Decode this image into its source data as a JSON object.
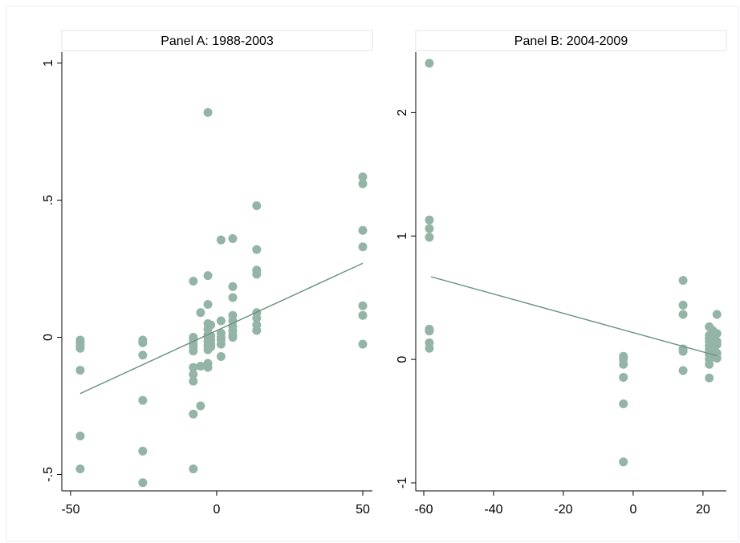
{
  "chart_data": [
    {
      "type": "scatter",
      "title": "Panel A: 1988-2003",
      "xlim": [
        -53,
        53.3
      ],
      "ylim": [
        -0.56,
        1.04
      ],
      "xticks": [
        -50,
        0,
        50
      ],
      "yticks": [
        {
          "value": -0.5,
          "label": "-.5"
        },
        0,
        {
          "value": 0.5,
          "label": ".5"
        },
        1
      ],
      "points": {
        "color": "#93b4a7",
        "x": [
          -46.7,
          -46.7,
          -46.7,
          -46.7,
          -46.7,
          -46.7,
          -46.7,
          -25.3,
          -25.3,
          -25.3,
          -25.3,
          -25.3,
          -25.3,
          -8,
          -8,
          -8,
          -8,
          -8,
          -8,
          -8,
          -8,
          -8,
          -8,
          -8,
          -5.5,
          -5.5,
          -5.5,
          -3,
          -3,
          -3,
          -3,
          -3,
          -3,
          -3,
          -3,
          -3,
          -3,
          -3,
          -3,
          -2,
          -2,
          -2,
          -2,
          -2,
          1.5,
          1.5,
          1.5,
          1.5,
          1.5,
          1.5,
          1.5,
          5.5,
          5.5,
          5.5,
          5.5,
          5.5,
          5.5,
          5.5,
          5.5,
          5.5,
          13.7,
          13.7,
          13.7,
          13.7,
          13.7,
          13.7,
          13.7,
          13.7,
          50,
          50,
          50,
          50,
          50,
          50,
          50
        ],
        "values": [
          -0.01,
          -0.02,
          -0.03,
          -0.04,
          -0.12,
          -0.36,
          -0.48,
          -0.01,
          -0.02,
          -0.065,
          -0.23,
          -0.415,
          -0.53,
          0.205,
          0,
          -0.01,
          -0.025,
          -0.035,
          -0.05,
          -0.11,
          -0.135,
          -0.16,
          -0.28,
          -0.48,
          0.09,
          -0.105,
          -0.25,
          0.82,
          0.225,
          0.12,
          0.05,
          0.03,
          0.01,
          0,
          -0.015,
          -0.03,
          -0.045,
          -0.095,
          -0.11,
          0.045,
          0.005,
          -0.01,
          -0.025,
          -0.035,
          0.355,
          0.06,
          0.015,
          0,
          -0.01,
          -0.025,
          -0.07,
          0.36,
          0.185,
          0.145,
          0.08,
          0.06,
          0.04,
          0.025,
          0.01,
          0,
          0.48,
          0.32,
          0.245,
          0.23,
          0.09,
          0.07,
          0.045,
          0.025,
          0.585,
          0.56,
          0.39,
          0.33,
          0.115,
          0.08,
          -0.025
        ]
      },
      "fit": {
        "color": "#6f9484",
        "x": [
          -46.7,
          50
        ],
        "values": [
          -0.205,
          0.27
        ]
      }
    },
    {
      "type": "scatter",
      "title": "Panel B: 2004-2009",
      "xlim": [
        -62.3,
        26.7
      ],
      "ylim": [
        -1.065,
        2.49
      ],
      "xticks": [
        -60,
        -40,
        -20,
        0,
        20
      ],
      "yticks": [
        -1,
        0,
        1,
        2
      ],
      "points": {
        "color": "#93b4a7",
        "x": [
          -58.4,
          -58.4,
          -58.4,
          -58.4,
          -58.4,
          -58.4,
          -58.4,
          -58.4,
          -2.8,
          -2.8,
          -2.8,
          -2.8,
          -2.8,
          -2.8,
          14.3,
          14.3,
          14.3,
          14.3,
          14.3,
          14.3,
          21.8,
          21.8,
          21.8,
          21.8,
          21.8,
          21.8,
          21.8,
          21.8,
          21.8,
          21.8,
          22.8,
          22.8,
          22.8,
          22.8,
          22.8,
          24,
          24,
          24,
          24,
          24,
          24
        ],
        "values": [
          2.4,
          1.13,
          1.06,
          0.99,
          0.245,
          0.23,
          0.135,
          0.09,
          0.025,
          0,
          -0.04,
          -0.145,
          -0.36,
          -0.83,
          0.64,
          0.44,
          0.365,
          0.085,
          0.065,
          -0.09,
          0.265,
          0.195,
          0.175,
          0.145,
          0.11,
          0.08,
          0.04,
          0,
          -0.04,
          -0.15,
          0.235,
          0.155,
          0.11,
          0.065,
          0.04,
          0.365,
          0.21,
          0.145,
          0.12,
          0.05,
          0.01
        ]
      },
      "fit": {
        "color": "#6f9484",
        "x": [
          -57.9,
          24
        ],
        "values": [
          0.67,
          0.03
        ]
      }
    }
  ]
}
